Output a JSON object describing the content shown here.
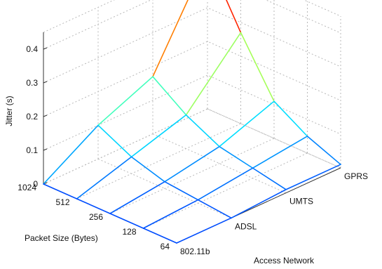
{
  "chart_data": {
    "type": "surface",
    "title": "",
    "zlabel": "Jitter (s)",
    "xlabel": "Packet Size (Bytes)",
    "ylabel": "Access Network",
    "x_categories": [
      "1024",
      "512",
      "256",
      "128",
      "64"
    ],
    "y_categories": [
      "802.11b",
      "ADSL",
      "UMTS",
      "GPRS"
    ],
    "zlim": [
      0,
      0.45
    ],
    "z_ticks": [
      "0",
      "0.1",
      "0.2",
      "0.3",
      "0.4"
    ],
    "grid": true,
    "colormap": "jet",
    "values": [
      [
        0.0,
        0.1,
        0.17,
        0.45
      ],
      [
        0.0,
        0.05,
        0.1,
        0.27
      ],
      [
        0.0,
        0.02,
        0.05,
        0.11
      ],
      [
        0.0,
        0.01,
        0.03,
        0.05
      ],
      [
        0.0,
        0.0,
        0.01,
        0.01
      ]
    ]
  }
}
